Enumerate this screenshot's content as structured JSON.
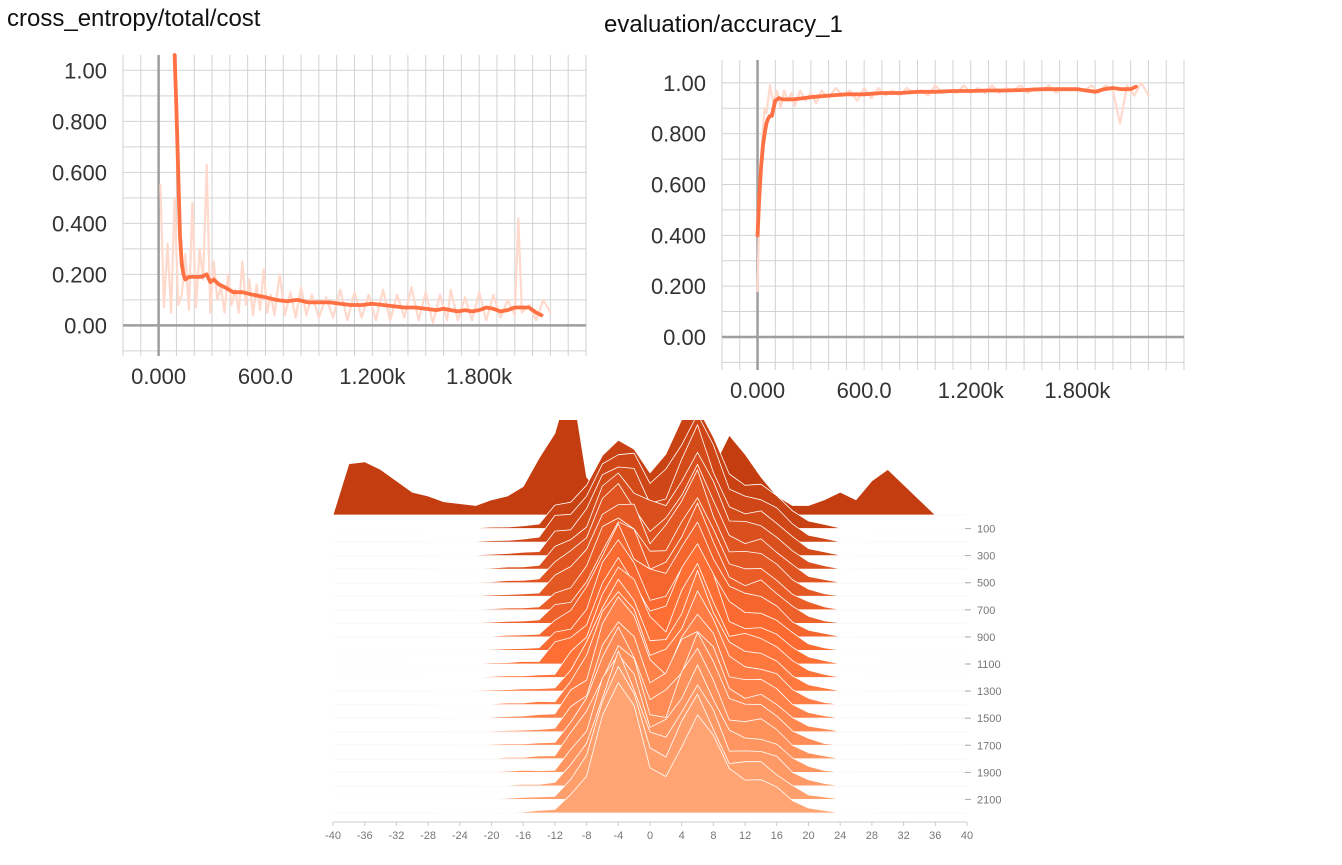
{
  "chart_data": [
    {
      "type": "line",
      "title": "cross_entropy/total/cost",
      "xlabel": "",
      "ylabel": "",
      "xlim": [
        -200,
        2400
      ],
      "ylim": [
        -0.12,
        1.06
      ],
      "x_ticks": [
        0,
        600,
        1200,
        1800
      ],
      "x_tick_labels": [
        "0.000",
        "600.0",
        "1.200k",
        "1.800k"
      ],
      "y_ticks": [
        0,
        0.2,
        0.4,
        0.6,
        0.8,
        1.0
      ],
      "y_tick_labels": [
        "0.00",
        "0.200",
        "0.400",
        "0.600",
        "0.800",
        "1.00"
      ],
      "grid": true,
      "colors": {
        "smoothed": "#ff7043",
        "raw": "#ffd9cc",
        "axis": "#9e9e9e",
        "grid": "#d2d2d2"
      },
      "series": [
        {
          "role": "raw",
          "x": [
            10,
            30,
            50,
            70,
            90,
            110,
            130,
            150,
            170,
            190,
            210,
            230,
            250,
            270,
            290,
            310,
            330,
            350,
            370,
            390,
            410,
            430,
            450,
            470,
            490,
            510,
            530,
            550,
            570,
            590,
            610,
            630,
            650,
            680,
            710,
            740,
            770,
            800,
            830,
            860,
            900,
            940,
            980,
            1020,
            1060,
            1100,
            1140,
            1180,
            1220,
            1260,
            1300,
            1340,
            1380,
            1420,
            1460,
            1500,
            1540,
            1580,
            1620,
            1640,
            1680,
            1720,
            1760,
            1800,
            1840,
            1880,
            1920,
            1960,
            2000,
            2020,
            2040,
            2080,
            2120,
            2160,
            2200
          ],
          "y": [
            0.55,
            0.07,
            0.32,
            0.05,
            0.5,
            0.08,
            0.12,
            0.28,
            0.06,
            0.48,
            0.07,
            0.3,
            0.18,
            0.63,
            0.05,
            0.25,
            0.1,
            0.15,
            0.05,
            0.2,
            0.08,
            0.14,
            0.05,
            0.25,
            0.08,
            0.18,
            0.04,
            0.16,
            0.06,
            0.22,
            0.05,
            0.12,
            0.04,
            0.2,
            0.04,
            0.13,
            0.03,
            0.15,
            0.04,
            0.12,
            0.03,
            0.11,
            0.03,
            0.14,
            0.02,
            0.13,
            0.03,
            0.12,
            0.02,
            0.14,
            0.02,
            0.12,
            0.03,
            0.15,
            0.02,
            0.13,
            0.01,
            0.12,
            0.02,
            0.14,
            0.02,
            0.11,
            0.02,
            0.13,
            0.02,
            0.12,
            0.03,
            0.1,
            0.04,
            0.42,
            0.05,
            0.08,
            0.02,
            0.1,
            0.05
          ]
        },
        {
          "role": "smoothed",
          "x": [
            90,
            100,
            110,
            120,
            130,
            140,
            150,
            170,
            200,
            240,
            270,
            290,
            310,
            340,
            370,
            420,
            470,
            530,
            600,
            660,
            720,
            780,
            840,
            900,
            960,
            1020,
            1080,
            1140,
            1200,
            1260,
            1320,
            1380,
            1440,
            1500,
            1560,
            1600,
            1640,
            1680,
            1720,
            1760,
            1800,
            1840,
            1880,
            1920,
            1960,
            2000,
            2040,
            2080,
            2120,
            2150
          ],
          "y": [
            1.06,
            0.85,
            0.6,
            0.35,
            0.24,
            0.2,
            0.18,
            0.19,
            0.19,
            0.19,
            0.2,
            0.17,
            0.18,
            0.16,
            0.15,
            0.13,
            0.13,
            0.12,
            0.11,
            0.1,
            0.095,
            0.1,
            0.09,
            0.09,
            0.09,
            0.085,
            0.08,
            0.08,
            0.085,
            0.08,
            0.075,
            0.07,
            0.07,
            0.065,
            0.06,
            0.065,
            0.06,
            0.055,
            0.06,
            0.055,
            0.06,
            0.07,
            0.065,
            0.055,
            0.06,
            0.07,
            0.07,
            0.07,
            0.05,
            0.04
          ]
        }
      ]
    },
    {
      "type": "line",
      "title": "evaluation/accuracy_1",
      "xlabel": "",
      "ylabel": "",
      "xlim": [
        -200,
        2400
      ],
      "ylim": [
        -0.13,
        1.09
      ],
      "x_ticks": [
        0,
        600,
        1200,
        1800
      ],
      "x_tick_labels": [
        "0.000",
        "600.0",
        "1.200k",
        "1.800k"
      ],
      "y_ticks": [
        0,
        0.2,
        0.4,
        0.6,
        0.8,
        1.0
      ],
      "y_tick_labels": [
        "0.00",
        "0.200",
        "0.400",
        "0.600",
        "0.800",
        "1.00"
      ],
      "grid": true,
      "colors": {
        "smoothed": "#ff7043",
        "raw": "#ffd9cc",
        "axis": "#9e9e9e",
        "grid": "#d2d2d2"
      },
      "series": [
        {
          "role": "raw",
          "x": [
            0,
            10,
            20,
            30,
            40,
            50,
            70,
            90,
            110,
            130,
            150,
            170,
            190,
            210,
            240,
            270,
            300,
            330,
            360,
            400,
            440,
            480,
            520,
            560,
            600,
            640,
            680,
            720,
            760,
            800,
            840,
            880,
            920,
            960,
            1000,
            1040,
            1080,
            1120,
            1160,
            1200,
            1240,
            1280,
            1320,
            1360,
            1400,
            1440,
            1480,
            1520,
            1560,
            1600,
            1640,
            1680,
            1720,
            1760,
            1800,
            1840,
            1880,
            1920,
            1960,
            2000,
            2040,
            2080,
            2120,
            2160,
            2200
          ],
          "y": [
            0.18,
            0.5,
            0.7,
            0.82,
            0.9,
            0.88,
            0.99,
            0.92,
            0.97,
            0.9,
            0.97,
            0.93,
            0.96,
            0.91,
            0.97,
            0.93,
            0.96,
            0.92,
            0.97,
            0.94,
            0.98,
            0.95,
            0.97,
            0.93,
            0.98,
            0.94,
            0.98,
            0.95,
            0.97,
            0.95,
            0.98,
            0.96,
            0.97,
            0.95,
            0.99,
            0.96,
            0.97,
            0.96,
            0.99,
            0.96,
            0.98,
            0.96,
            0.99,
            0.96,
            0.98,
            0.97,
            0.99,
            0.96,
            0.98,
            0.97,
            0.99,
            0.96,
            0.98,
            0.97,
            0.98,
            0.97,
            0.99,
            0.96,
            0.99,
            0.97,
            0.84,
            0.99,
            0.95,
            1.0,
            0.95
          ]
        },
        {
          "role": "smoothed",
          "x": [
            0,
            10,
            20,
            30,
            40,
            50,
            60,
            70,
            80,
            90,
            100,
            120,
            140,
            160,
            200,
            260,
            320,
            400,
            500,
            600,
            700,
            800,
            900,
            1000,
            1100,
            1200,
            1300,
            1400,
            1500,
            1600,
            1700,
            1800,
            1850,
            1900,
            1950,
            2000,
            2050,
            2100,
            2130
          ],
          "y": [
            0.4,
            0.55,
            0.67,
            0.75,
            0.8,
            0.84,
            0.86,
            0.87,
            0.87,
            0.9,
            0.93,
            0.94,
            0.935,
            0.935,
            0.935,
            0.94,
            0.945,
            0.95,
            0.955,
            0.955,
            0.96,
            0.96,
            0.965,
            0.965,
            0.968,
            0.968,
            0.97,
            0.97,
            0.972,
            0.975,
            0.975,
            0.975,
            0.97,
            0.965,
            0.975,
            0.98,
            0.975,
            0.975,
            0.985
          ]
        }
      ]
    },
    {
      "type": "area",
      "title": "",
      "xlim": [
        -40,
        40
      ],
      "x_ticks": [
        -40,
        -36,
        -32,
        -28,
        -24,
        -20,
        -16,
        -12,
        -8,
        -4,
        0,
        4,
        8,
        12,
        16,
        20,
        24,
        28,
        32,
        36,
        40
      ],
      "x_tick_labels": [
        "-40",
        "-36",
        "-32",
        "-28",
        "-24",
        "-20",
        "-16",
        "-12",
        "-8",
        "-4",
        "0",
        "4",
        "8",
        "12",
        "16",
        "20",
        "24",
        "28",
        "32",
        "36",
        "40"
      ],
      "y_ticks": [
        100,
        300,
        500,
        700,
        900,
        1100,
        1300,
        1500,
        1700,
        1900,
        2100
      ],
      "y_tick_labels": [
        "100",
        "300",
        "500",
        "700",
        "900",
        "1100",
        "1300",
        "1500",
        "1700",
        "1900",
        "2100"
      ],
      "steps": [
        0,
        100,
        200,
        300,
        400,
        500,
        600,
        700,
        800,
        900,
        1000,
        1100,
        1200,
        1300,
        1400,
        1500,
        1600,
        1700,
        1800,
        1900,
        2000,
        2100,
        2200
      ],
      "colors": {
        "oldest": "#c43d10",
        "middle": "#ff6f34",
        "newest": "#ffa472",
        "axis": "#cccccc"
      },
      "x": [
        -40,
        -38,
        -36,
        -34,
        -32,
        -30,
        -28,
        -26,
        -24,
        -22,
        -20,
        -18,
        -16,
        -14,
        -12,
        -10,
        -8,
        -6,
        -4,
        -2,
        0,
        2,
        4,
        6,
        8,
        10,
        12,
        14,
        16,
        18,
        20,
        22,
        24,
        26,
        28,
        30,
        32,
        34,
        36,
        38,
        40
      ],
      "first_profile": [
        0,
        0.27,
        0.28,
        0.24,
        0.18,
        0.12,
        0.1,
        0.07,
        0.06,
        0.05,
        0.08,
        0.1,
        0.15,
        0.3,
        0.43,
        0.72,
        0.2,
        0.1,
        0.15,
        0.28,
        0.18,
        0.25,
        0.32,
        0.22,
        0.25,
        0.42,
        0.32,
        0.2,
        0.1,
        0.05,
        0.05,
        0.08,
        0.12,
        0.08,
        0.18,
        0.24,
        0.16,
        0.08,
        0,
        0,
        0
      ]
    }
  ]
}
